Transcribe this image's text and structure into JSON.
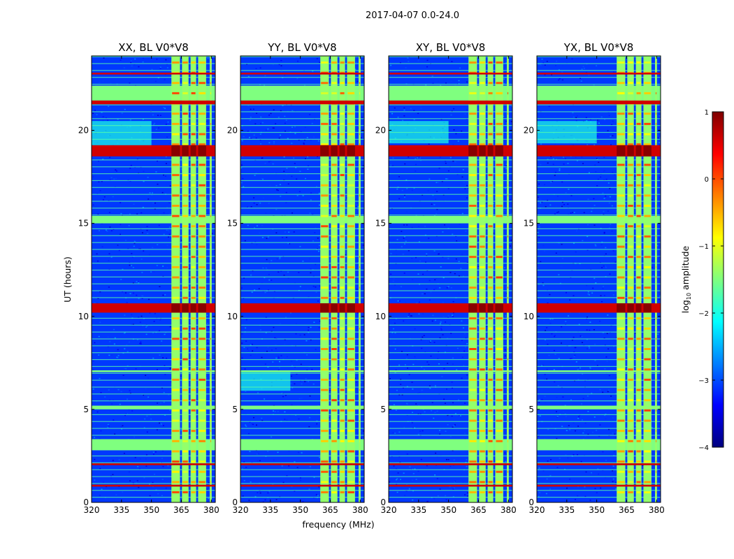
{
  "figure_title": "2017-04-07 0.0-24.0",
  "colors": {
    "colormap": "jet",
    "jet_stops": [
      "#00007f",
      "#0000ff",
      "#007fff",
      "#00ffff",
      "#7fff7f",
      "#ffff00",
      "#ff7f00",
      "#ff0000",
      "#7f0000"
    ]
  },
  "chart_data": [
    {
      "type": "heatmap",
      "title": "XX, BL V0*V8",
      "xlabel": "frequency (MHz)",
      "ylabel": "UT (hours)",
      "xlim": [
        320,
        382
      ],
      "ylim": [
        0,
        24
      ],
      "xticks": [
        320,
        335,
        350,
        365,
        380
      ],
      "yticks": [
        0,
        5,
        10,
        15,
        20
      ],
      "zlabel": "log10 amplitude",
      "zlim": [
        -4,
        1
      ],
      "rfi_band_MHz": [
        360,
        380
      ],
      "band_stripes_MHz": [
        [
          360,
          364.3
        ],
        [
          365.3,
          368.6
        ],
        [
          369.6,
          372.4
        ],
        [
          373.4,
          377.4
        ],
        [
          379.2,
          380.2
        ]
      ],
      "strong_rfi_hours": [
        [
          0.85,
          0.95
        ],
        [
          2.0,
          2.1
        ],
        [
          10.2,
          10.7
        ],
        [
          18.6,
          19.2
        ],
        [
          21.4,
          21.6
        ],
        [
          23.0,
          23.1
        ]
      ],
      "broadband_flag_hours": [
        [
          2.8,
          3.4
        ],
        [
          5.0,
          5.2
        ],
        [
          7.0,
          7.1
        ],
        [
          15.0,
          15.4
        ],
        [
          21.6,
          22.4
        ]
      ],
      "diffuse_emission": {
        "hours": [
          19.0,
          20.5
        ],
        "freq_MHz": [
          320,
          350
        ]
      }
    },
    {
      "type": "heatmap",
      "title": "YY, BL V0*V8",
      "xlabel": "frequency (MHz)",
      "ylabel": "UT (hours)",
      "xlim": [
        320,
        382
      ],
      "ylim": [
        0,
        24
      ],
      "xticks": [
        320,
        335,
        350,
        365,
        380
      ],
      "yticks": [
        0,
        5,
        10,
        15,
        20
      ],
      "zlabel": "log10 amplitude",
      "zlim": [
        -4,
        1
      ],
      "rfi_band_MHz": [
        360,
        380
      ],
      "band_stripes_MHz": [
        [
          360,
          364.3
        ],
        [
          365.3,
          368.6
        ],
        [
          369.6,
          372.4
        ],
        [
          373.4,
          377.4
        ],
        [
          379.2,
          380.2
        ]
      ],
      "strong_rfi_hours": [
        [
          0.85,
          0.95
        ],
        [
          2.0,
          2.1
        ],
        [
          10.2,
          10.7
        ],
        [
          18.6,
          19.2
        ],
        [
          21.4,
          21.6
        ],
        [
          23.0,
          23.1
        ]
      ],
      "broadband_flag_hours": [
        [
          2.8,
          3.4
        ],
        [
          5.0,
          5.2
        ],
        [
          7.0,
          7.1
        ],
        [
          15.0,
          15.4
        ],
        [
          21.6,
          22.4
        ]
      ],
      "diffuse_emission": {
        "hours": [
          6.0,
          7.0
        ],
        "freq_MHz": [
          320,
          345
        ]
      }
    },
    {
      "type": "heatmap",
      "title": "XY, BL V0*V8",
      "xlabel": "frequency (MHz)",
      "ylabel": "UT (hours)",
      "xlim": [
        320,
        382
      ],
      "ylim": [
        0,
        24
      ],
      "xticks": [
        320,
        335,
        350,
        365,
        380
      ],
      "yticks": [
        0,
        5,
        10,
        15,
        20
      ],
      "zlabel": "log10 amplitude",
      "zlim": [
        -4,
        1
      ],
      "rfi_band_MHz": [
        360,
        380
      ],
      "band_stripes_MHz": [
        [
          360,
          364.3
        ],
        [
          365.3,
          368.6
        ],
        [
          369.6,
          372.4
        ],
        [
          373.4,
          377.4
        ],
        [
          379.2,
          380.2
        ]
      ],
      "strong_rfi_hours": [
        [
          0.85,
          0.95
        ],
        [
          2.0,
          2.1
        ],
        [
          10.2,
          10.7
        ],
        [
          18.6,
          19.2
        ],
        [
          21.4,
          21.6
        ],
        [
          23.0,
          23.1
        ]
      ],
      "broadband_flag_hours": [
        [
          2.8,
          3.4
        ],
        [
          5.0,
          5.2
        ],
        [
          7.0,
          7.1
        ],
        [
          15.0,
          15.4
        ],
        [
          21.6,
          22.4
        ]
      ],
      "diffuse_emission": {
        "hours": [
          19.3,
          20.5
        ],
        "freq_MHz": [
          320,
          350
        ]
      }
    },
    {
      "type": "heatmap",
      "title": "YX, BL V0*V8",
      "xlabel": "frequency (MHz)",
      "ylabel": "UT (hours)",
      "xlim": [
        320,
        382
      ],
      "ylim": [
        0,
        24
      ],
      "xticks": [
        320,
        335,
        350,
        365,
        380
      ],
      "yticks": [
        0,
        5,
        10,
        15,
        20
      ],
      "zlabel": "log10 amplitude",
      "zlim": [
        -4,
        1
      ],
      "rfi_band_MHz": [
        360,
        380
      ],
      "band_stripes_MHz": [
        [
          360,
          364.3
        ],
        [
          365.3,
          368.6
        ],
        [
          369.6,
          372.4
        ],
        [
          373.4,
          377.4
        ],
        [
          379.2,
          380.2
        ]
      ],
      "strong_rfi_hours": [
        [
          0.85,
          0.95
        ],
        [
          2.0,
          2.1
        ],
        [
          10.2,
          10.7
        ],
        [
          18.6,
          19.2
        ],
        [
          21.4,
          21.6
        ],
        [
          23.0,
          23.1
        ]
      ],
      "broadband_flag_hours": [
        [
          2.8,
          3.4
        ],
        [
          5.0,
          5.2
        ],
        [
          7.0,
          7.1
        ],
        [
          15.0,
          15.4
        ],
        [
          21.6,
          22.4
        ]
      ],
      "diffuse_emission": {
        "hours": [
          19.3,
          20.5
        ],
        "freq_MHz": [
          320,
          350
        ]
      }
    }
  ],
  "colorbar": {
    "label_prefix": "log",
    "label_sub": "10",
    "label_suffix": " amplitude",
    "ticks": [
      1,
      0,
      -1,
      -2,
      -3,
      -4
    ],
    "tick_labels": [
      "1",
      "0",
      "−1",
      "−2",
      "−3",
      "−4"
    ]
  }
}
